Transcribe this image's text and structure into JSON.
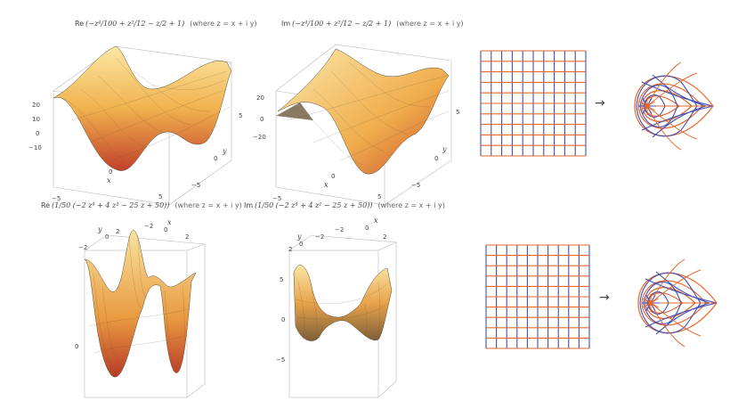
{
  "plots": [
    {
      "caption_prefix": "Re",
      "caption_expr": "(−z⁴/100 + z²/12 − z/2 + 1)",
      "caption_note": "(where z = x + i y)",
      "zticks": [
        "20",
        "10",
        "0",
        "−10"
      ],
      "xticks": [
        "−5",
        "0",
        "5"
      ],
      "yticks": [
        "5",
        "0",
        "−5"
      ],
      "xlabel": "x",
      "ylabel": "y"
    },
    {
      "caption_prefix": "Im",
      "caption_expr": "(−z⁴/100 + z²/12 − z/2 + 1)",
      "caption_note": "(where z = x + i y)",
      "zticks": [
        "20",
        "0",
        "−20"
      ],
      "xticks": [
        "−5",
        "0",
        "5"
      ],
      "yticks": [
        "5",
        "0",
        "−5"
      ],
      "xlabel": "x",
      "ylabel": "y"
    },
    {
      "caption_prefix": "Re",
      "caption_expr": "(1/50 (−2 z⁴ + 4 z² − 25 z + 50))",
      "caption_note": "(where z = x + i y)",
      "zticks": [
        "0"
      ],
      "xticks": [
        "−2",
        "0",
        "2"
      ],
      "yticks": [
        "−2",
        "0",
        "2"
      ],
      "xlabel": "x",
      "ylabel": "y"
    },
    {
      "caption_prefix": "Im",
      "caption_expr": "(1/50 (−2 z⁴ + 4 z² − 25 z + 50))",
      "caption_note": "(where z = x + i y)",
      "zticks": [
        "5",
        "0",
        "−5"
      ],
      "xticks": [
        "−2",
        "0",
        "2"
      ],
      "yticks": [
        "−2",
        "0",
        "2"
      ],
      "xlabel": "x",
      "ylabel": "y"
    }
  ],
  "mapping": {
    "arrow": "→",
    "grid_color": "#e8662a",
    "grid_color_2": "#3d4fb8"
  }
}
